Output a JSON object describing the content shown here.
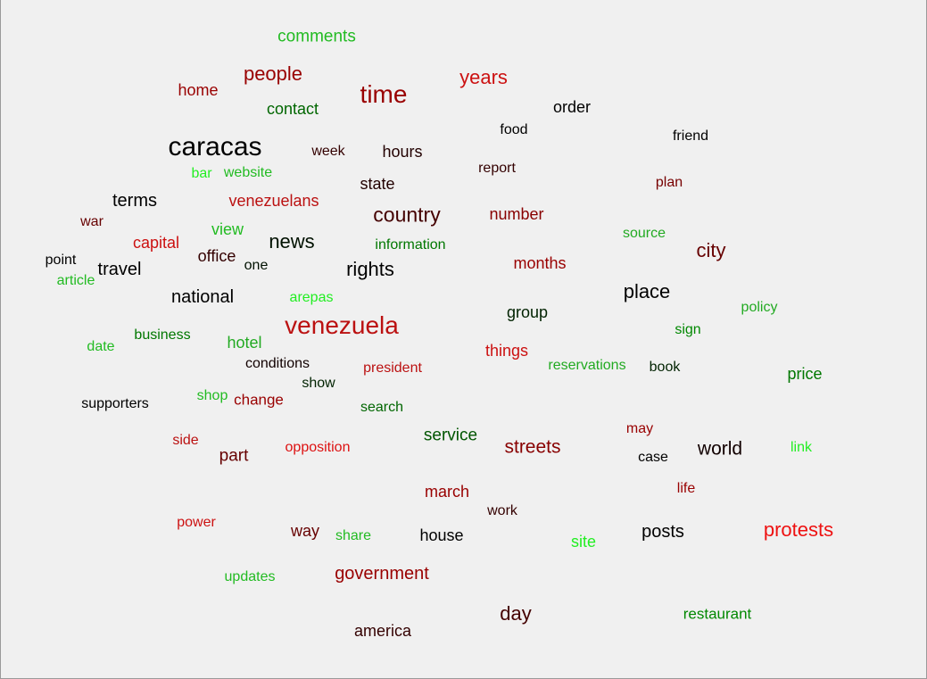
{
  "words": [
    {
      "text": "comments",
      "color": "#22bb22"
    },
    {
      "text": "home",
      "color": "#990000"
    },
    {
      "text": "people",
      "color": "#990000"
    },
    {
      "text": "time",
      "color": "#990000"
    },
    {
      "text": "years",
      "color": "#cc1111"
    },
    {
      "text": "order",
      "color": "#000000"
    },
    {
      "text": "contact",
      "color": "#006600"
    },
    {
      "text": "food",
      "color": "#000000"
    },
    {
      "text": "friend",
      "color": "#000000"
    },
    {
      "text": "caracas",
      "color": "#000000"
    },
    {
      "text": "week",
      "color": "#330000"
    },
    {
      "text": "hours",
      "color": "#220000"
    },
    {
      "text": "report",
      "color": "#330000"
    },
    {
      "text": "bar",
      "color": "#22ee22"
    },
    {
      "text": "website",
      "color": "#22bb22"
    },
    {
      "text": "plan",
      "color": "#770000"
    },
    {
      "text": "state",
      "color": "#220000"
    },
    {
      "text": "terms",
      "color": "#000000"
    },
    {
      "text": "venezuelans",
      "color": "#bb1111"
    },
    {
      "text": "country",
      "color": "#440000"
    },
    {
      "text": "number",
      "color": "#880000"
    },
    {
      "text": "war",
      "color": "#660000"
    },
    {
      "text": "view",
      "color": "#22bb22"
    },
    {
      "text": "source",
      "color": "#22aa22"
    },
    {
      "text": "capital",
      "color": "#cc1111"
    },
    {
      "text": "news",
      "color": "#001100"
    },
    {
      "text": "information",
      "color": "#007700"
    },
    {
      "text": "city",
      "color": "#660000"
    },
    {
      "text": "point",
      "color": "#000000"
    },
    {
      "text": "office",
      "color": "#330000"
    },
    {
      "text": "one",
      "color": "#001100"
    },
    {
      "text": "travel",
      "color": "#000000"
    },
    {
      "text": "rights",
      "color": "#000000"
    },
    {
      "text": "months",
      "color": "#990000"
    },
    {
      "text": "article",
      "color": "#22bb22"
    },
    {
      "text": "national",
      "color": "#000000"
    },
    {
      "text": "arepas",
      "color": "#22ee22"
    },
    {
      "text": "place",
      "color": "#000000"
    },
    {
      "text": "group",
      "color": "#002200"
    },
    {
      "text": "policy",
      "color": "#22aa22"
    },
    {
      "text": "venezuela",
      "color": "#bb1111"
    },
    {
      "text": "date",
      "color": "#22bb22"
    },
    {
      "text": "business",
      "color": "#007700"
    },
    {
      "text": "hotel",
      "color": "#22aa22"
    },
    {
      "text": "sign",
      "color": "#008800"
    },
    {
      "text": "things",
      "color": "#cc1111"
    },
    {
      "text": "conditions",
      "color": "#110000"
    },
    {
      "text": "reservations",
      "color": "#22aa22"
    },
    {
      "text": "book",
      "color": "#002200"
    },
    {
      "text": "price",
      "color": "#007700"
    },
    {
      "text": "president",
      "color": "#bb1111"
    },
    {
      "text": "show",
      "color": "#002200"
    },
    {
      "text": "supporters",
      "color": "#000000"
    },
    {
      "text": "shop",
      "color": "#22bb22"
    },
    {
      "text": "change",
      "color": "#990000"
    },
    {
      "text": "search",
      "color": "#006600"
    },
    {
      "text": "may",
      "color": "#990000"
    },
    {
      "text": "service",
      "color": "#005500"
    },
    {
      "text": "side",
      "color": "#bb1111"
    },
    {
      "text": "streets",
      "color": "#880000"
    },
    {
      "text": "case",
      "color": "#000000"
    },
    {
      "text": "world",
      "color": "#110000"
    },
    {
      "text": "link",
      "color": "#22ee22"
    },
    {
      "text": "part",
      "color": "#660000"
    },
    {
      "text": "opposition",
      "color": "#dd1111"
    },
    {
      "text": "march",
      "color": "#990000"
    },
    {
      "text": "life",
      "color": "#990000"
    },
    {
      "text": "work",
      "color": "#330000"
    },
    {
      "text": "power",
      "color": "#cc1111"
    },
    {
      "text": "way",
      "color": "#660000"
    },
    {
      "text": "share",
      "color": "#22bb22"
    },
    {
      "text": "house",
      "color": "#000000"
    },
    {
      "text": "site",
      "color": "#22ee22"
    },
    {
      "text": "posts",
      "color": "#000000"
    },
    {
      "text": "protests",
      "color": "#ee1111"
    },
    {
      "text": "updates",
      "color": "#22bb22"
    },
    {
      "text": "government",
      "color": "#990000"
    },
    {
      "text": "day",
      "color": "#440000"
    },
    {
      "text": "restaurant",
      "color": "#008800"
    },
    {
      "text": "america",
      "color": "#330000"
    }
  ]
}
